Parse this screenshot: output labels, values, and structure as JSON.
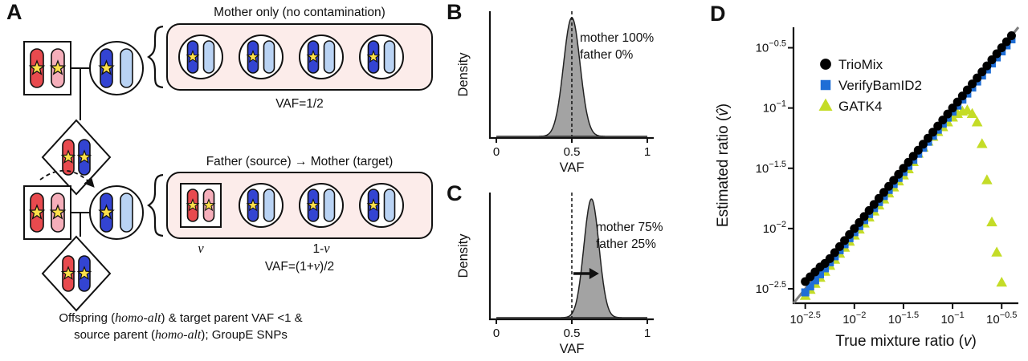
{
  "palette": {
    "chrom_red": "#e84a4e",
    "chrom_pink": "#f5aeba",
    "chrom_blue_dark": "#3344d2",
    "chrom_blue_light": "#b9d3f4",
    "star_yellow": "#ffe04a",
    "box_fill": "#fcecea",
    "density_fill": "#a3a3a3",
    "line_gray": "#7d7d7d"
  },
  "panels": {
    "a": "A",
    "b": "B",
    "c": "C",
    "d": "D"
  },
  "panelA": {
    "title1": "Mother only (no contamination)",
    "vaf1": "VAF=1/2",
    "title2": "Father (source) → Mother (target)",
    "vaf2": {
      "pre": "VAF=(1+",
      "v": "v",
      "post": ")/2"
    },
    "v_label": "v",
    "one_minus_v": {
      "pre": "1-",
      "v": "v"
    },
    "caption": {
      "l1a": "Offspring (",
      "l1b": "homo-alt",
      "l1c": ") & target parent VAF <1 &",
      "l2a": "source parent (",
      "l2b": "homo-alt",
      "l2c": "); GroupE SNPs"
    }
  },
  "chart_data": [
    {
      "id": "panelB",
      "type": "area",
      "xlabel": "VAF",
      "ylabel": "Density",
      "xlim": [
        0,
        1
      ],
      "xticks": [
        0,
        0.5,
        1
      ],
      "xtick_labels": [
        "0",
        "0.5",
        "1"
      ],
      "density_mean": 0.5,
      "density_sd": 0.055,
      "vline": 0.5,
      "annotations": [
        "mother 100%",
        "father 0%"
      ]
    },
    {
      "id": "panelC",
      "type": "area",
      "xlabel": "VAF",
      "ylabel": "Density",
      "xlim": [
        0,
        1
      ],
      "xticks": [
        0,
        0.5,
        1
      ],
      "xtick_labels": [
        "0",
        "0.5",
        "1"
      ],
      "density_mean": 0.63,
      "density_sd": 0.05,
      "vline": 0.5,
      "arrow": {
        "from": 0.51,
        "to": 0.68
      },
      "annotations": [
        "mother 75%",
        "father 25%"
      ]
    },
    {
      "id": "panelD",
      "type": "scatter",
      "xscale": "log",
      "yscale": "log",
      "xlabel": {
        "pre": "True mixture ratio (",
        "var": "v",
        "post": ")"
      },
      "ylabel": {
        "pre": "Estimated ratio (",
        "var": "v̂",
        "post": ")"
      },
      "xlim_log": [
        -2.62,
        -0.33
      ],
      "ylim_log": [
        -2.62,
        -0.33
      ],
      "xtick_exponents": [
        -2.5,
        -2,
        -1.5,
        -1,
        -0.5
      ],
      "ytick_exponents": [
        -0.5,
        -1,
        -1.5,
        -2,
        -2.5
      ],
      "identity_line": true,
      "legend_position": "top-left",
      "series": [
        {
          "name": "TrioMix",
          "marker": "circle",
          "color": "#000000",
          "log_x": [
            -2.5,
            -2.45,
            -2.4,
            -2.35,
            -2.3,
            -2.25,
            -2.2,
            -2.15,
            -2.1,
            -2.05,
            -2,
            -1.95,
            -1.9,
            -1.85,
            -1.8,
            -1.75,
            -1.7,
            -1.65,
            -1.6,
            -1.55,
            -1.5,
            -1.45,
            -1.4,
            -1.35,
            -1.3,
            -1.25,
            -1.2,
            -1.15,
            -1.1,
            -1.05,
            -1,
            -0.95,
            -0.9,
            -0.85,
            -0.8,
            -0.75,
            -0.7,
            -0.65,
            -0.6,
            -0.55,
            -0.5,
            -0.45,
            -0.4
          ],
          "log_y": [
            -2.44,
            -2.4,
            -2.36,
            -2.32,
            -2.29,
            -2.25,
            -2.2,
            -2.15,
            -2.1,
            -2.05,
            -2,
            -1.95,
            -1.9,
            -1.85,
            -1.8,
            -1.75,
            -1.7,
            -1.65,
            -1.6,
            -1.55,
            -1.5,
            -1.45,
            -1.4,
            -1.35,
            -1.3,
            -1.25,
            -1.2,
            -1.15,
            -1.1,
            -1.05,
            -1,
            -0.95,
            -0.9,
            -0.85,
            -0.8,
            -0.75,
            -0.7,
            -0.65,
            -0.6,
            -0.55,
            -0.5,
            -0.45,
            -0.4
          ]
        },
        {
          "name": "VerifyBamID2",
          "marker": "square",
          "color": "#1f6ed6",
          "log_x": [
            -2.5,
            -2.45,
            -2.4,
            -2.35,
            -2.3,
            -2.25,
            -2.2,
            -2.15,
            -2.1,
            -2.05,
            -2,
            -1.95,
            -1.9,
            -1.85,
            -1.8,
            -1.75,
            -1.7,
            -1.65,
            -1.6,
            -1.55,
            -1.5,
            -1.45,
            -1.4,
            -1.35,
            -1.3,
            -1.25,
            -1.2,
            -1.15,
            -1.1,
            -1.05,
            -1,
            -0.95,
            -0.9,
            -0.85,
            -0.8,
            -0.75,
            -0.7,
            -0.65,
            -0.6,
            -0.55,
            -0.5,
            -0.45,
            -0.4
          ],
          "log_y": [
            -2.53,
            -2.48,
            -2.43,
            -2.38,
            -2.33,
            -2.28,
            -2.23,
            -2.18,
            -2.13,
            -2.08,
            -2.03,
            -1.98,
            -1.93,
            -1.88,
            -1.83,
            -1.78,
            -1.73,
            -1.68,
            -1.63,
            -1.58,
            -1.53,
            -1.48,
            -1.43,
            -1.38,
            -1.33,
            -1.28,
            -1.23,
            -1.18,
            -1.13,
            -1.08,
            -1.03,
            -0.98,
            -0.93,
            -0.88,
            -0.83,
            -0.78,
            -0.73,
            -0.68,
            -0.63,
            -0.58,
            -0.53,
            -0.48,
            -0.43
          ]
        },
        {
          "name": "GATK4",
          "marker": "triangle",
          "color": "#c4dc27",
          "log_x": [
            -2.5,
            -2.45,
            -2.4,
            -2.35,
            -2.3,
            -2.25,
            -2.2,
            -2.15,
            -2.1,
            -2.05,
            -2,
            -1.95,
            -1.9,
            -1.85,
            -1.8,
            -1.75,
            -1.7,
            -1.65,
            -1.6,
            -1.55,
            -1.5,
            -1.45,
            -1.4,
            -1.35,
            -1.3,
            -1.25,
            -1.2,
            -1.15,
            -1.1,
            -1.05,
            -1,
            -0.95,
            -0.9,
            -0.85,
            -0.8,
            -0.75,
            -0.7,
            -0.65,
            -0.6,
            -0.55,
            -0.5
          ],
          "log_y": [
            -2.56,
            -2.51,
            -2.46,
            -2.41,
            -2.36,
            -2.31,
            -2.26,
            -2.21,
            -2.16,
            -2.11,
            -2.06,
            -2.01,
            -1.96,
            -1.91,
            -1.86,
            -1.81,
            -1.76,
            -1.71,
            -1.66,
            -1.61,
            -1.56,
            -1.51,
            -1.45,
            -1.38,
            -1.33,
            -1.28,
            -1.24,
            -1.2,
            -1.16,
            -1.12,
            -1.08,
            -1.05,
            -1.03,
            -1.02,
            -1.05,
            -1.12,
            -1.3,
            -1.6,
            -1.95,
            -2.2,
            -2.45
          ]
        }
      ]
    }
  ]
}
